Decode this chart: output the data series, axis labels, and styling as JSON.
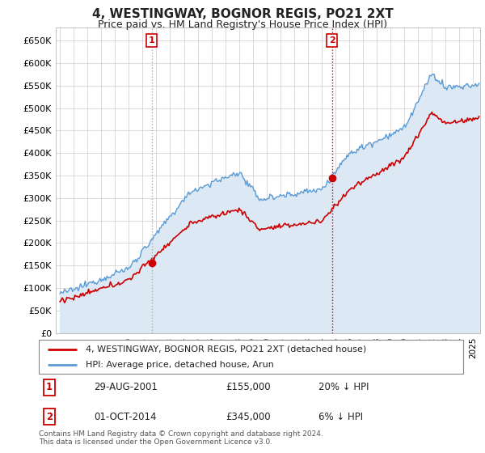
{
  "title": "4, WESTINGWAY, BOGNOR REGIS, PO21 2XT",
  "subtitle": "Price paid vs. HM Land Registry's House Price Index (HPI)",
  "legend_line1": "4, WESTINGWAY, BOGNOR REGIS, PO21 2XT (detached house)",
  "legend_line2": "HPI: Average price, detached house, Arun",
  "transaction1_date": "29-AUG-2001",
  "transaction1_price": "£155,000",
  "transaction1_hpi": "20% ↓ HPI",
  "transaction2_date": "01-OCT-2014",
  "transaction2_price": "£345,000",
  "transaction2_hpi": "6% ↓ HPI",
  "footer": "Contains HM Land Registry data © Crown copyright and database right 2024.\nThis data is licensed under the Open Government Licence v3.0.",
  "hpi_color": "#5b9bd5",
  "hpi_fill_color": "#dce9f5",
  "price_color": "#cc0000",
  "marker_color": "#cc0000",
  "vline1_color": "#aaaaaa",
  "vline2_color": "#cc0000",
  "grid_color": "#cccccc",
  "background_color": "#ffffff",
  "ylim": [
    0,
    680000
  ],
  "yticks": [
    0,
    50000,
    100000,
    150000,
    200000,
    250000,
    300000,
    350000,
    400000,
    450000,
    500000,
    550000,
    600000,
    650000
  ],
  "xlim_start": 1994.7,
  "xlim_end": 2025.5,
  "t1_year": 2001.664,
  "t1_price": 155000,
  "t2_year": 2014.748,
  "t2_price": 345000
}
